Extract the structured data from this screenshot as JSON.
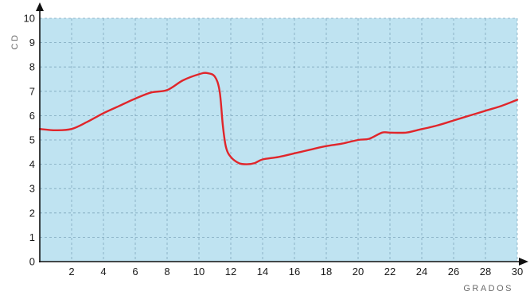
{
  "chart_data": {
    "type": "line",
    "title": "",
    "xlabel": "GRADOS",
    "ylabel": "CD",
    "xlim": [
      0,
      30
    ],
    "ylim": [
      0,
      10
    ],
    "grid": true,
    "x_ticks": [
      "2",
      "4",
      "6",
      "8",
      "10",
      "12",
      "14",
      "16",
      "18",
      "20",
      "22",
      "24",
      "26",
      "28",
      "30"
    ],
    "y_ticks": [
      "0",
      "1",
      "2",
      "3",
      "4",
      "5",
      "6",
      "7",
      "8",
      "9",
      "10"
    ],
    "colors": {
      "plot_background": "#bfe3f1",
      "series": "#e0262b",
      "grid": "#7fa7bc"
    },
    "series": [
      {
        "x": [
          0,
          1,
          2,
          3,
          4,
          5,
          6,
          7,
          8,
          9,
          10,
          10.5,
          11,
          11.3,
          11.5,
          11.7,
          12,
          12.5,
          13,
          13.5,
          14,
          15,
          16,
          17,
          18,
          19,
          20,
          20.7,
          21.5,
          22,
          23,
          23.7,
          25,
          26,
          27,
          28,
          29,
          30
        ],
        "y": [
          5.45,
          5.4,
          5.45,
          5.75,
          6.1,
          6.4,
          6.7,
          6.95,
          7.05,
          7.45,
          7.7,
          7.75,
          7.6,
          7.0,
          5.6,
          4.7,
          4.3,
          4.05,
          4.0,
          4.05,
          4.2,
          4.3,
          4.45,
          4.6,
          4.75,
          4.85,
          5.0,
          5.05,
          5.3,
          5.3,
          5.3,
          5.4,
          5.6,
          5.8,
          6.0,
          6.2,
          6.4,
          6.65
        ]
      }
    ]
  }
}
